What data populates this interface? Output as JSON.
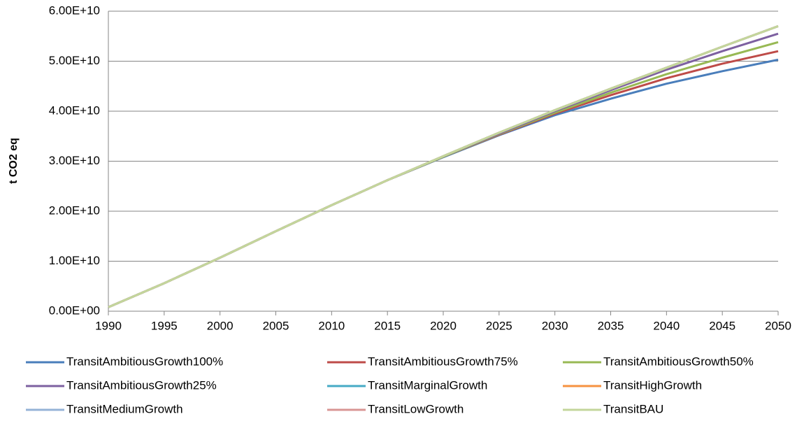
{
  "chart_data": {
    "type": "line",
    "y_axis_label": "t CO2 eq",
    "x": [
      1990,
      1995,
      2000,
      2005,
      2010,
      2015,
      2020,
      2025,
      2030,
      2035,
      2040,
      2045,
      2050
    ],
    "xlim": [
      1990,
      2050
    ],
    "xticks": [
      1990,
      1995,
      2000,
      2005,
      2010,
      2015,
      2020,
      2025,
      2030,
      2035,
      2040,
      2045,
      2050
    ],
    "ylim": [
      0,
      60000000000.0
    ],
    "yticks": [
      {
        "value": 0,
        "label": "0.00E+00"
      },
      {
        "value": 10000000000.0,
        "label": "1.00E+10"
      },
      {
        "value": 20000000000.0,
        "label": "2.00E+10"
      },
      {
        "value": 30000000000.0,
        "label": "3.00E+10"
      },
      {
        "value": 40000000000.0,
        "label": "4.00E+10"
      },
      {
        "value": 50000000000.0,
        "label": "5.00E+10"
      },
      {
        "value": 60000000000.0,
        "label": "6.00E+10"
      }
    ],
    "grid": true,
    "legend": "bottom",
    "series": [
      {
        "name": "TransitAmbitiousGrowth100%",
        "color": "#4a7ebb",
        "values": [
          800000000.0,
          5600000000.0,
          10700000000.0,
          16000000000.0,
          21200000000.0,
          26200000000.0,
          30800000000.0,
          35200000000.0,
          39200000000.0,
          42500000000.0,
          45500000000.0,
          48000000000.0,
          50300000000.0
        ]
      },
      {
        "name": "TransitAmbitiousGrowth75%",
        "color": "#be4b48",
        "values": [
          800000000.0,
          5600000000.0,
          10700000000.0,
          16000000000.0,
          21200000000.0,
          26200000000.0,
          30900000000.0,
          35300000000.0,
          39500000000.0,
          43200000000.0,
          46600000000.0,
          49500000000.0,
          52000000000.0
        ]
      },
      {
        "name": "TransitAmbitiousGrowth50%",
        "color": "#98b954",
        "values": [
          800000000.0,
          5600000000.0,
          10700000000.0,
          16000000000.0,
          21200000000.0,
          26200000000.0,
          30900000000.0,
          35400000000.0,
          39700000000.0,
          43700000000.0,
          47400000000.0,
          50700000000.0,
          53800000000.0
        ]
      },
      {
        "name": "TransitAmbitiousGrowth25%",
        "color": "#7d60a0",
        "values": [
          800000000.0,
          5600000000.0,
          10700000000.0,
          16000000000.0,
          21200000000.0,
          26200000000.0,
          31000000000.0,
          35500000000.0,
          40000000000.0,
          44200000000.0,
          48300000000.0,
          52000000000.0,
          55500000000.0
        ]
      },
      {
        "name": "TransitMarginalGrowth",
        "color": "#46aac5",
        "values": [
          800000000.0,
          5600000000.0,
          10700000000.0,
          16000000000.0,
          21200000000.0,
          26200000000.0,
          31000000000.0,
          35700000000.0,
          40200000000.0,
          44500000000.0,
          48700000000.0,
          52900000000.0,
          57000000000.0
        ]
      },
      {
        "name": "TransitHighGrowth",
        "color": "#f69240",
        "values": [
          800000000.0,
          5600000000.0,
          10700000000.0,
          16000000000.0,
          21200000000.0,
          26200000000.0,
          31000000000.0,
          35700000000.0,
          40200000000.0,
          44500000000.0,
          48700000000.0,
          52900000000.0,
          57000000000.0
        ]
      },
      {
        "name": "TransitMediumGrowth",
        "color": "#95b3d7",
        "values": [
          800000000.0,
          5600000000.0,
          10700000000.0,
          16000000000.0,
          21200000000.0,
          26200000000.0,
          31000000000.0,
          35700000000.0,
          40200000000.0,
          44500000000.0,
          48700000000.0,
          52900000000.0,
          57000000000.0
        ]
      },
      {
        "name": "TransitLowGrowth",
        "color": "#d99694",
        "values": [
          800000000.0,
          5600000000.0,
          10700000000.0,
          16000000000.0,
          21200000000.0,
          26200000000.0,
          31000000000.0,
          35700000000.0,
          40200000000.0,
          44500000000.0,
          48700000000.0,
          52900000000.0,
          57000000000.0
        ]
      },
      {
        "name": "TransitBAU",
        "color": "#c3d69b",
        "values": [
          800000000.0,
          5600000000.0,
          10700000000.0,
          16000000000.0,
          21200000000.0,
          26200000000.0,
          31000000000.0,
          35700000000.0,
          40200000000.0,
          44500000000.0,
          48700000000.0,
          52900000000.0,
          57000000000.0
        ]
      }
    ]
  }
}
